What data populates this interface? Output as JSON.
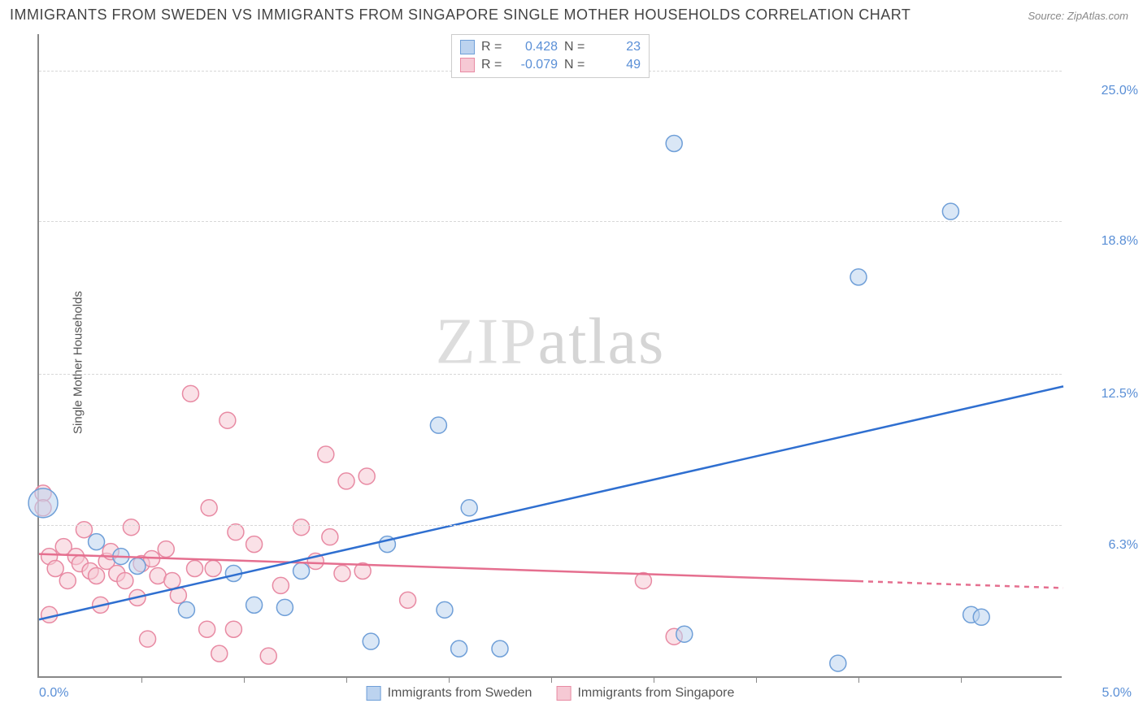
{
  "title": "IMMIGRANTS FROM SWEDEN VS IMMIGRANTS FROM SINGAPORE SINGLE MOTHER HOUSEHOLDS CORRELATION CHART",
  "source": "Source: ZipAtlas.com",
  "y_axis_label": "Single Mother Households",
  "watermark": {
    "a": "ZIP",
    "b": "atlas"
  },
  "x_axis": {
    "min_label": "0.0%",
    "max_label": "5.0%",
    "min": 0.0,
    "max": 5.0
  },
  "y_axis": {
    "min": 0.0,
    "max": 26.5,
    "ticks": [
      {
        "v": 6.3,
        "label": "6.3%"
      },
      {
        "v": 12.5,
        "label": "12.5%"
      },
      {
        "v": 18.8,
        "label": "18.8%"
      },
      {
        "v": 25.0,
        "label": "25.0%"
      }
    ]
  },
  "x_ticks_count": 10,
  "legend_top": {
    "rows": [
      {
        "swatch_fill": "#bcd3ef",
        "swatch_border": "#6f9fd8",
        "r_label": "R =",
        "r_value": "0.428",
        "n_label": "N =",
        "n_value": "23"
      },
      {
        "swatch_fill": "#f6c9d4",
        "swatch_border": "#e88aa3",
        "r_label": "R =",
        "r_value": "-0.079",
        "n_label": "N =",
        "n_value": "49"
      }
    ]
  },
  "legend_bottom": {
    "items": [
      {
        "swatch_fill": "#bcd3ef",
        "swatch_border": "#6f9fd8",
        "label": "Immigrants from Sweden"
      },
      {
        "swatch_fill": "#f6c9d4",
        "swatch_border": "#e88aa3",
        "label": "Immigrants from Singapore"
      }
    ]
  },
  "series": {
    "sweden": {
      "fill": "#bcd3ef",
      "stroke": "#6f9fd8",
      "marker_r": 10,
      "trend": {
        "color": "#2f6fd0",
        "width": 2.5,
        "x1": 0.0,
        "y1": 2.4,
        "x2": 5.0,
        "y2": 12.0,
        "solid_until_x": 5.0
      },
      "points": [
        {
          "x": 0.02,
          "y": 7.2,
          "r": 18
        },
        {
          "x": 0.28,
          "y": 5.6
        },
        {
          "x": 0.4,
          "y": 5.0
        },
        {
          "x": 0.48,
          "y": 4.6
        },
        {
          "x": 0.72,
          "y": 2.8
        },
        {
          "x": 0.95,
          "y": 4.3
        },
        {
          "x": 1.05,
          "y": 3.0
        },
        {
          "x": 1.2,
          "y": 2.9
        },
        {
          "x": 1.28,
          "y": 4.4
        },
        {
          "x": 1.62,
          "y": 1.5
        },
        {
          "x": 1.7,
          "y": 5.5
        },
        {
          "x": 1.95,
          "y": 10.4
        },
        {
          "x": 1.98,
          "y": 2.8
        },
        {
          "x": 2.05,
          "y": 1.2
        },
        {
          "x": 2.1,
          "y": 7.0
        },
        {
          "x": 2.25,
          "y": 1.2
        },
        {
          "x": 3.1,
          "y": 22.0
        },
        {
          "x": 3.15,
          "y": 1.8
        },
        {
          "x": 3.9,
          "y": 0.6
        },
        {
          "x": 4.0,
          "y": 16.5
        },
        {
          "x": 4.45,
          "y": 19.2
        },
        {
          "x": 4.55,
          "y": 2.6
        },
        {
          "x": 4.6,
          "y": 2.5
        }
      ]
    },
    "singapore": {
      "fill": "#f6c9d4",
      "stroke": "#e88aa3",
      "marker_r": 10,
      "trend": {
        "color": "#e56f8f",
        "width": 2.5,
        "x1": 0.0,
        "y1": 5.1,
        "x2": 5.0,
        "y2": 3.7,
        "solid_until_x": 4.0
      },
      "points": [
        {
          "x": 0.02,
          "y": 7.6
        },
        {
          "x": 0.02,
          "y": 7.0
        },
        {
          "x": 0.05,
          "y": 2.6
        },
        {
          "x": 0.05,
          "y": 5.0
        },
        {
          "x": 0.08,
          "y": 4.5
        },
        {
          "x": 0.12,
          "y": 5.4
        },
        {
          "x": 0.14,
          "y": 4.0
        },
        {
          "x": 0.18,
          "y": 5.0
        },
        {
          "x": 0.2,
          "y": 4.7
        },
        {
          "x": 0.22,
          "y": 6.1
        },
        {
          "x": 0.25,
          "y": 4.4
        },
        {
          "x": 0.28,
          "y": 4.2
        },
        {
          "x": 0.3,
          "y": 3.0
        },
        {
          "x": 0.33,
          "y": 4.8
        },
        {
          "x": 0.35,
          "y": 5.2
        },
        {
          "x": 0.38,
          "y": 4.3
        },
        {
          "x": 0.42,
          "y": 4.0
        },
        {
          "x": 0.45,
          "y": 6.2
        },
        {
          "x": 0.48,
          "y": 3.3
        },
        {
          "x": 0.5,
          "y": 4.7
        },
        {
          "x": 0.53,
          "y": 1.6
        },
        {
          "x": 0.55,
          "y": 4.9
        },
        {
          "x": 0.58,
          "y": 4.2
        },
        {
          "x": 0.62,
          "y": 5.3
        },
        {
          "x": 0.65,
          "y": 4.0
        },
        {
          "x": 0.68,
          "y": 3.4
        },
        {
          "x": 0.74,
          "y": 11.7
        },
        {
          "x": 0.76,
          "y": 4.5
        },
        {
          "x": 0.82,
          "y": 2.0
        },
        {
          "x": 0.83,
          "y": 7.0
        },
        {
          "x": 0.85,
          "y": 4.5
        },
        {
          "x": 0.88,
          "y": 1.0
        },
        {
          "x": 0.92,
          "y": 10.6
        },
        {
          "x": 0.95,
          "y": 2.0
        },
        {
          "x": 0.96,
          "y": 6.0
        },
        {
          "x": 1.05,
          "y": 5.5
        },
        {
          "x": 1.12,
          "y": 0.9
        },
        {
          "x": 1.18,
          "y": 3.8
        },
        {
          "x": 1.28,
          "y": 6.2
        },
        {
          "x": 1.35,
          "y": 4.8
        },
        {
          "x": 1.4,
          "y": 9.2
        },
        {
          "x": 1.42,
          "y": 5.8
        },
        {
          "x": 1.48,
          "y": 4.3
        },
        {
          "x": 1.5,
          "y": 8.1
        },
        {
          "x": 1.58,
          "y": 4.4
        },
        {
          "x": 1.6,
          "y": 8.3
        },
        {
          "x": 1.8,
          "y": 3.2
        },
        {
          "x": 2.95,
          "y": 4.0
        },
        {
          "x": 3.1,
          "y": 1.7
        }
      ]
    }
  },
  "colors": {
    "title": "#444444",
    "axis_value": "#5a8fd6",
    "grid": "#d8d8d8",
    "axis_line": "#888888"
  }
}
